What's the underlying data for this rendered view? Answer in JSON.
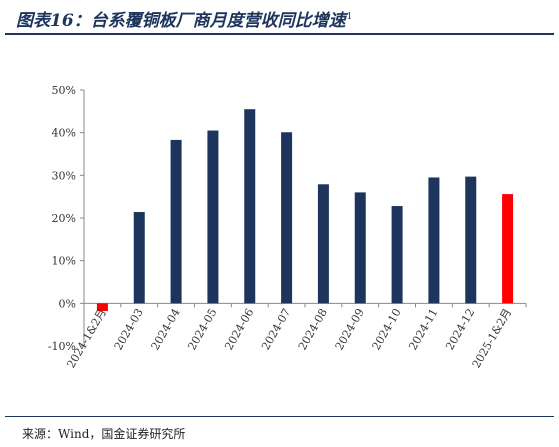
{
  "header": {
    "title": "图表16：台系覆铜板厂商月度营收同比增速",
    "title_sup": "1"
  },
  "footer": {
    "source": "来源：Wind，国金证券研究所"
  },
  "colors": {
    "primary": "#1d355c",
    "highlight": "#ff0000",
    "axis": "#888888"
  },
  "chart_data": {
    "type": "bar",
    "title": "",
    "xlabel": "",
    "ylabel": "",
    "categories": [
      "2024-1&2月",
      "2024-03",
      "2024-04",
      "2024-05",
      "2024-06",
      "2024-07",
      "2024-08",
      "2024-09",
      "2024-10",
      "2024-11",
      "2024-12",
      "2025-1&2月"
    ],
    "values": [
      -1.8,
      21.4,
      38.3,
      40.5,
      45.5,
      40.1,
      27.9,
      26.0,
      22.8,
      29.5,
      29.7,
      25.6
    ],
    "highlight_indices": [
      0,
      11
    ],
    "ylim": [
      -10,
      50
    ],
    "yticks": [
      -10,
      0,
      10,
      20,
      30,
      40,
      50
    ],
    "ytick_labels": [
      "-10%",
      "0%",
      "10%",
      "20%",
      "30%",
      "40%",
      "50%"
    ],
    "grid": false,
    "legend": "none"
  }
}
